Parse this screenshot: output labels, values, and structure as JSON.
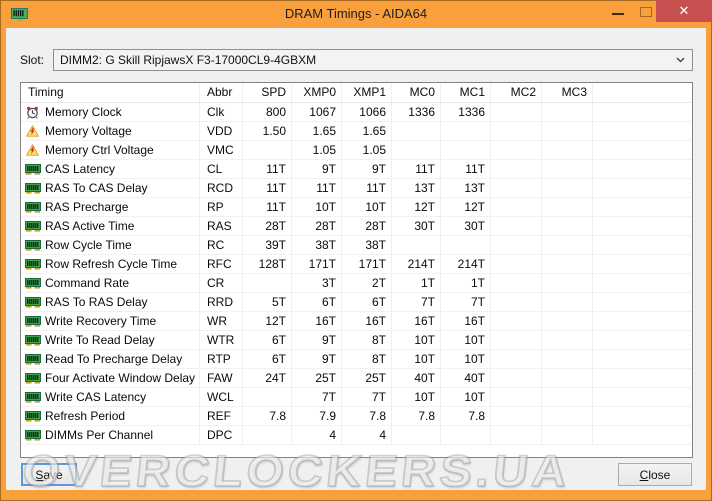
{
  "window": {
    "title": "DRAM Timings - AIDA64"
  },
  "titlebar": {
    "close_glyph": "✕"
  },
  "slot": {
    "label": "Slot:",
    "value": "DIMM2: G Skill RipjawsX F3-17000CL9-4GBXM"
  },
  "table": {
    "columns": [
      "Timing",
      "Abbr",
      "SPD",
      "XMP0",
      "XMP1",
      "MC0",
      "MC1",
      "MC2",
      "MC3"
    ],
    "rows": [
      {
        "icon": "clock-icon",
        "timing": "Memory Clock",
        "abbr": "Clk",
        "spd": "800",
        "xmp0": "1067",
        "xmp1": "1066",
        "mc0": "1336",
        "mc1": "1336",
        "mc2": "",
        "mc3": ""
      },
      {
        "icon": "warning-icon",
        "timing": "Memory Voltage",
        "abbr": "VDD",
        "spd": "1.50",
        "xmp0": "1.65",
        "xmp1": "1.65",
        "mc0": "",
        "mc1": "",
        "mc2": "",
        "mc3": ""
      },
      {
        "icon": "warning-icon",
        "timing": "Memory Ctrl Voltage",
        "abbr": "VMC",
        "spd": "",
        "xmp0": "1.05",
        "xmp1": "1.05",
        "mc0": "",
        "mc1": "",
        "mc2": "",
        "mc3": ""
      },
      {
        "icon": "ram-icon",
        "timing": "CAS Latency",
        "abbr": "CL",
        "spd": "11T",
        "xmp0": "9T",
        "xmp1": "9T",
        "mc0": "11T",
        "mc1": "11T",
        "mc2": "",
        "mc3": ""
      },
      {
        "icon": "ram-icon",
        "timing": "RAS To CAS Delay",
        "abbr": "RCD",
        "spd": "11T",
        "xmp0": "11T",
        "xmp1": "11T",
        "mc0": "13T",
        "mc1": "13T",
        "mc2": "",
        "mc3": ""
      },
      {
        "icon": "ram-icon",
        "timing": "RAS Precharge",
        "abbr": "RP",
        "spd": "11T",
        "xmp0": "10T",
        "xmp1": "10T",
        "mc0": "12T",
        "mc1": "12T",
        "mc2": "",
        "mc3": ""
      },
      {
        "icon": "ram-icon",
        "timing": "RAS Active Time",
        "abbr": "RAS",
        "spd": "28T",
        "xmp0": "28T",
        "xmp1": "28T",
        "mc0": "30T",
        "mc1": "30T",
        "mc2": "",
        "mc3": ""
      },
      {
        "icon": "ram-icon",
        "timing": "Row Cycle Time",
        "abbr": "RC",
        "spd": "39T",
        "xmp0": "38T",
        "xmp1": "38T",
        "mc0": "",
        "mc1": "",
        "mc2": "",
        "mc3": ""
      },
      {
        "icon": "ram-icon",
        "timing": "Row Refresh Cycle Time",
        "abbr": "RFC",
        "spd": "128T",
        "xmp0": "171T",
        "xmp1": "171T",
        "mc0": "214T",
        "mc1": "214T",
        "mc2": "",
        "mc3": ""
      },
      {
        "icon": "ram-icon",
        "timing": "Command Rate",
        "abbr": "CR",
        "spd": "",
        "xmp0": "3T",
        "xmp1": "2T",
        "mc0": "1T",
        "mc1": "1T",
        "mc2": "",
        "mc3": ""
      },
      {
        "icon": "ram-icon",
        "timing": "RAS To RAS Delay",
        "abbr": "RRD",
        "spd": "5T",
        "xmp0": "6T",
        "xmp1": "6T",
        "mc0": "7T",
        "mc1": "7T",
        "mc2": "",
        "mc3": ""
      },
      {
        "icon": "ram-icon",
        "timing": "Write Recovery Time",
        "abbr": "WR",
        "spd": "12T",
        "xmp0": "16T",
        "xmp1": "16T",
        "mc0": "16T",
        "mc1": "16T",
        "mc2": "",
        "mc3": ""
      },
      {
        "icon": "ram-icon",
        "timing": "Write To Read Delay",
        "abbr": "WTR",
        "spd": "6T",
        "xmp0": "9T",
        "xmp1": "8T",
        "mc0": "10T",
        "mc1": "10T",
        "mc2": "",
        "mc3": ""
      },
      {
        "icon": "ram-icon",
        "timing": "Read To Precharge Delay",
        "abbr": "RTP",
        "spd": "6T",
        "xmp0": "9T",
        "xmp1": "8T",
        "mc0": "10T",
        "mc1": "10T",
        "mc2": "",
        "mc3": ""
      },
      {
        "icon": "ram-icon",
        "timing": "Four Activate Window Delay",
        "abbr": "FAW",
        "spd": "24T",
        "xmp0": "25T",
        "xmp1": "25T",
        "mc0": "40T",
        "mc1": "40T",
        "mc2": "",
        "mc3": ""
      },
      {
        "icon": "ram-icon",
        "timing": "Write CAS Latency",
        "abbr": "WCL",
        "spd": "",
        "xmp0": "7T",
        "xmp1": "7T",
        "mc0": "10T",
        "mc1": "10T",
        "mc2": "",
        "mc3": ""
      },
      {
        "icon": "ram-icon",
        "timing": "Refresh Period",
        "abbr": "REF",
        "spd": "7.8",
        "xmp0": "7.9",
        "xmp1": "7.8",
        "mc0": "7.8",
        "mc1": "7.8",
        "mc2": "",
        "mc3": ""
      },
      {
        "icon": "ram-icon",
        "timing": "DIMMs Per Channel",
        "abbr": "DPC",
        "spd": "",
        "xmp0": "4",
        "xmp1": "4",
        "mc0": "",
        "mc1": "",
        "mc2": "",
        "mc3": ""
      }
    ]
  },
  "footer": {
    "save_label": "Save",
    "close_label": "Close"
  },
  "watermark": "OVERCLOCKERS.UA",
  "colors": {
    "titlebar": "#F9A03C",
    "close_button": "#C75050",
    "ram_green": "#3DA44A",
    "warning_yellow": "#FFE066",
    "bolt_red": "#C42B1C"
  }
}
